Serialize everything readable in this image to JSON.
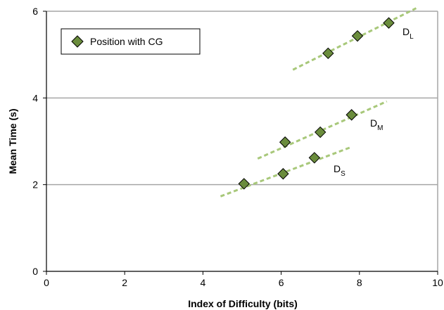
{
  "chart_data": {
    "type": "scatter",
    "title": "",
    "xlabel": "Index of Difficulty (bits)",
    "ylabel": "Mean Time (s)",
    "xlim": [
      0,
      10
    ],
    "ylim": [
      0,
      6
    ],
    "xticks": [
      "0",
      "2",
      "4",
      "6",
      "8",
      "10"
    ],
    "yticks": [
      "0",
      "2",
      "4",
      "6"
    ],
    "grid": "horizontal",
    "legend": {
      "position": "top-left",
      "entries": [
        "Position with CG"
      ]
    },
    "series": [
      {
        "name": "Position with CG",
        "marker": "diamond",
        "x": [
          5.05,
          6.05,
          6.85,
          6.1,
          7.0,
          7.8,
          7.2,
          7.95,
          8.75
        ],
        "y": [
          2.02,
          2.25,
          2.62,
          2.98,
          3.21,
          3.61,
          5.03,
          5.43,
          5.73
        ]
      }
    ],
    "trendlines": [
      {
        "label_main": "D",
        "label_sub": "S",
        "x": [
          4.45,
          7.8
        ],
        "y": [
          1.73,
          2.87
        ]
      },
      {
        "label_main": "D",
        "label_sub": "M",
        "x": [
          5.4,
          8.7
        ],
        "y": [
          2.6,
          3.92
        ]
      },
      {
        "label_main": "D",
        "label_sub": "L",
        "x": [
          6.3,
          9.45
        ],
        "y": [
          4.65,
          6.07
        ]
      }
    ],
    "colors": {
      "marker": "#6a8c3c",
      "marker_edge": "#000000",
      "trendline": "#a8c87a",
      "grid": "#a6a6a6"
    }
  }
}
